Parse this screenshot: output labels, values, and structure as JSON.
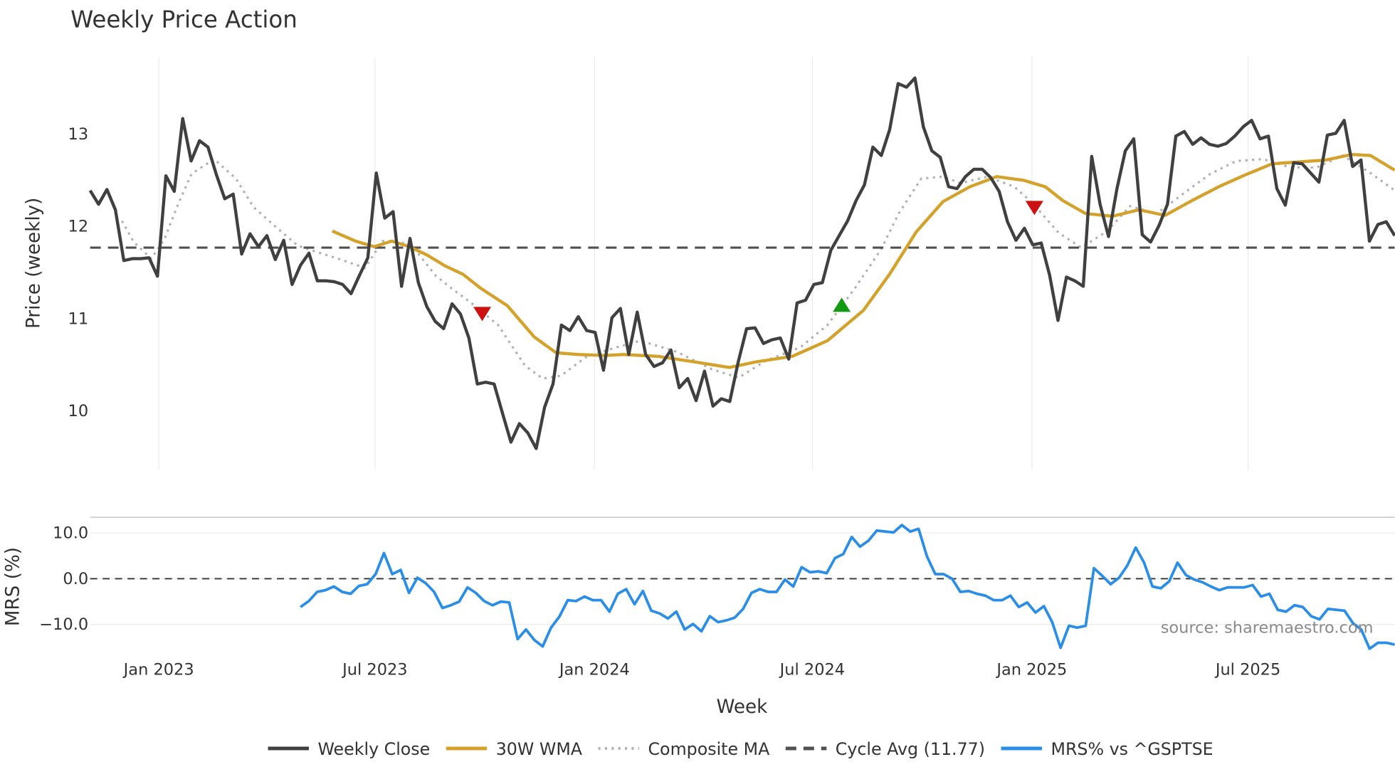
{
  "chart_data": [
    {
      "type": "line",
      "title": "Weekly Price Action",
      "xlabel": "Week",
      "ylabel": "Price (weekly)",
      "x_unit": "weeks since first plotted week (early Nov 2022)",
      "xlim": [
        0,
        155.7
      ],
      "ylim": [
        9.4,
        13.85
      ],
      "grid": true,
      "x_ticks": [
        {
          "label": "Jan 2023",
          "week": 8.2
        },
        {
          "label": "Jul 2023",
          "week": 34.0
        },
        {
          "label": "Jan 2024",
          "week": 60.2
        },
        {
          "label": "Jul 2024",
          "week": 86.2
        },
        {
          "label": "Jan 2025",
          "week": 112.4
        },
        {
          "label": "Jul 2025",
          "week": 138.2
        }
      ],
      "y_ticks": [
        10,
        11,
        12,
        13
      ],
      "series": [
        {
          "name": "Weekly Close",
          "color": "#404040",
          "style": "solid",
          "start_week": 0,
          "end_week": 155.7,
          "values": [
            12.39,
            12.24,
            12.4,
            12.18,
            11.63,
            11.65,
            11.65,
            11.66,
            11.46,
            12.55,
            12.38,
            13.17,
            12.71,
            12.93,
            12.86,
            12.56,
            12.3,
            12.35,
            11.7,
            11.92,
            11.78,
            11.9,
            11.64,
            11.85,
            11.37,
            11.58,
            11.71,
            11.41,
            11.41,
            11.4,
            11.37,
            11.27,
            11.47,
            11.66,
            12.58,
            12.09,
            12.16,
            11.35,
            11.87,
            11.39,
            11.13,
            10.97,
            10.89,
            11.16,
            11.05,
            10.79,
            10.29,
            10.31,
            10.29,
            9.97,
            9.66,
            9.86,
            9.76,
            9.59,
            10.04,
            10.29,
            10.93,
            10.87,
            11.02,
            10.87,
            10.85,
            10.44,
            11.01,
            11.11,
            10.61,
            11.07,
            10.61,
            10.48,
            10.52,
            10.66,
            10.25,
            10.35,
            10.11,
            10.43,
            10.05,
            10.13,
            10.1,
            10.53,
            10.89,
            10.9,
            10.73,
            10.77,
            10.79,
            10.56,
            11.17,
            11.2,
            11.37,
            11.39,
            11.74,
            11.9,
            12.06,
            12.28,
            12.45,
            12.86,
            12.77,
            13.05,
            13.55,
            13.51,
            13.61,
            13.08,
            12.82,
            12.75,
            12.43,
            12.41,
            12.54,
            12.62,
            12.62,
            12.53,
            12.38,
            12.05,
            11.85,
            11.98,
            11.8,
            11.82,
            11.47,
            10.98,
            11.45,
            11.41,
            11.35,
            12.76,
            12.24,
            11.89,
            12.41,
            12.82,
            12.95,
            11.91,
            11.83,
            12.01,
            12.24,
            12.98,
            13.03,
            12.89,
            12.96,
            12.89,
            12.87,
            12.9,
            12.98,
            13.08,
            13.15,
            12.95,
            12.98,
            12.41,
            12.23,
            12.69,
            12.68,
            12.58,
            12.48,
            12.99,
            13.01,
            13.15,
            12.65,
            12.72,
            11.84,
            12.02,
            12.05,
            11.9
          ]
        },
        {
          "name": "30W WMA",
          "color": "#d4a22b",
          "style": "solid",
          "points": [
            [
              28.9,
              11.95
            ],
            [
              31.7,
              11.84
            ],
            [
              33.9,
              11.78
            ],
            [
              36.0,
              11.84
            ],
            [
              38.1,
              11.78
            ],
            [
              40.2,
              11.69
            ],
            [
              42.4,
              11.57
            ],
            [
              44.5,
              11.48
            ],
            [
              46.6,
              11.33
            ],
            [
              49.8,
              11.14
            ],
            [
              53.0,
              10.8
            ],
            [
              55.6,
              10.63
            ],
            [
              58.3,
              10.61
            ],
            [
              61.4,
              10.6
            ],
            [
              63.6,
              10.61
            ],
            [
              67.8,
              10.59
            ],
            [
              72.1,
              10.53
            ],
            [
              76.3,
              10.47
            ],
            [
              79.5,
              10.53
            ],
            [
              83.8,
              10.59
            ],
            [
              88.0,
              10.76
            ],
            [
              92.3,
              11.09
            ],
            [
              95.4,
              11.48
            ],
            [
              98.6,
              11.94
            ],
            [
              101.8,
              12.27
            ],
            [
              105.0,
              12.43
            ],
            [
              108.2,
              12.54
            ],
            [
              111.4,
              12.5
            ],
            [
              114.0,
              12.43
            ],
            [
              116.1,
              12.28
            ],
            [
              118.8,
              12.14
            ],
            [
              122.0,
              12.11
            ],
            [
              125.2,
              12.18
            ],
            [
              128.3,
              12.12
            ],
            [
              131.5,
              12.28
            ],
            [
              134.7,
              12.43
            ],
            [
              137.9,
              12.56
            ],
            [
              141.1,
              12.68
            ],
            [
              144.3,
              12.7
            ],
            [
              147.5,
              12.72
            ],
            [
              150.6,
              12.78
            ],
            [
              152.8,
              12.77
            ],
            [
              155.7,
              12.61
            ]
          ]
        },
        {
          "name": "Composite MA",
          "color": "#b0b0b0",
          "style": "dotted",
          "points": [
            [
              3.8,
              12.06
            ],
            [
              5.2,
              11.83
            ],
            [
              7.3,
              11.65
            ],
            [
              8.9,
              11.87
            ],
            [
              10.5,
              12.24
            ],
            [
              12.1,
              12.57
            ],
            [
              14.8,
              12.73
            ],
            [
              17.4,
              12.52
            ],
            [
              19.5,
              12.21
            ],
            [
              22.2,
              11.99
            ],
            [
              24.8,
              11.79
            ],
            [
              27.5,
              11.71
            ],
            [
              29.6,
              11.65
            ],
            [
              32.8,
              11.55
            ],
            [
              34.9,
              11.84
            ],
            [
              37.0,
              11.84
            ],
            [
              39.2,
              11.7
            ],
            [
              41.3,
              11.46
            ],
            [
              43.4,
              11.31
            ],
            [
              45.5,
              11.17
            ],
            [
              48.7,
              10.93
            ],
            [
              51.9,
              10.49
            ],
            [
              54.0,
              10.35
            ],
            [
              56.2,
              10.38
            ],
            [
              59.3,
              10.59
            ],
            [
              62.5,
              10.68
            ],
            [
              65.7,
              10.76
            ],
            [
              70.0,
              10.64
            ],
            [
              74.2,
              10.45
            ],
            [
              77.4,
              10.36
            ],
            [
              80.6,
              10.54
            ],
            [
              84.8,
              10.69
            ],
            [
              88.0,
              10.93
            ],
            [
              91.2,
              11.32
            ],
            [
              94.4,
              11.75
            ],
            [
              96.5,
              12.14
            ],
            [
              99.2,
              12.52
            ],
            [
              101.8,
              12.54
            ],
            [
              103.9,
              12.47
            ],
            [
              107.1,
              12.54
            ],
            [
              110.3,
              12.43
            ],
            [
              112.4,
              12.26
            ],
            [
              115.6,
              11.93
            ],
            [
              118.3,
              11.77
            ],
            [
              121.4,
              11.95
            ],
            [
              124.1,
              12.22
            ],
            [
              127.3,
              12.14
            ],
            [
              130.4,
              12.35
            ],
            [
              133.7,
              12.57
            ],
            [
              136.8,
              12.71
            ],
            [
              140.0,
              12.73
            ],
            [
              143.2,
              12.64
            ],
            [
              146.4,
              12.64
            ],
            [
              149.5,
              12.77
            ],
            [
              152.8,
              12.58
            ],
            [
              155.7,
              12.39
            ]
          ]
        },
        {
          "name": "Cycle Avg (11.77)",
          "color": "#505050",
          "style": "dashed",
          "value": 11.77
        }
      ],
      "markers": [
        {
          "type": "sell",
          "shape": "triangle-down",
          "color": "#cc1111",
          "week": 46.8,
          "value": 11.05
        },
        {
          "type": "buy",
          "shape": "triangle-up",
          "color": "#119911",
          "week": 89.7,
          "value": 11.15
        },
        {
          "type": "sell",
          "shape": "triangle-down",
          "color": "#cc1111",
          "week": 112.7,
          "value": 12.2
        }
      ]
    },
    {
      "type": "line",
      "ylabel": "MRS (%)",
      "ylim": [
        -16.5,
        13
      ],
      "y_ticks": [
        {
          "value": 10,
          "label": "10.0"
        },
        {
          "value": 0,
          "label": "0.0"
        },
        {
          "value": -10,
          "label": "−10.0"
        }
      ],
      "zero_line": 0,
      "series": [
        {
          "name": "MRS% vs ^GSPTSE",
          "color": "#2a8de6",
          "style": "solid",
          "start_week": 25.1,
          "end_week": 155.7,
          "values": [
            -6.2,
            -4.9,
            -2.9,
            -2.5,
            -1.7,
            -2.9,
            -3.3,
            -1.6,
            -1.2,
            1.0,
            5.6,
            1.0,
            1.9,
            -3.1,
            0.2,
            -1.0,
            -2.9,
            -6.4,
            -5.8,
            -5.0,
            -1.9,
            -3.1,
            -4.9,
            -5.8,
            -5.0,
            -5.2,
            -13.2,
            -11.1,
            -13.4,
            -14.8,
            -10.7,
            -8.3,
            -4.7,
            -4.9,
            -3.9,
            -4.7,
            -4.7,
            -7.2,
            -3.3,
            -2.3,
            -5.6,
            -2.7,
            -7.0,
            -7.6,
            -8.7,
            -7.2,
            -11.1,
            -9.9,
            -11.5,
            -8.2,
            -9.5,
            -9.1,
            -8.5,
            -6.6,
            -3.1,
            -2.3,
            -2.9,
            -2.9,
            -0.2,
            -1.7,
            2.5,
            1.4,
            1.6,
            1.2,
            4.5,
            5.4,
            9.1,
            7.0,
            8.3,
            10.5,
            10.3,
            10.1,
            11.7,
            10.3,
            10.9,
            4.9,
            1.0,
            1.0,
            0.0,
            -2.9,
            -2.7,
            -3.3,
            -3.7,
            -4.7,
            -4.7,
            -3.7,
            -6.2,
            -5.2,
            -7.4,
            -6.0,
            -9.5,
            -15.1,
            -10.3,
            -10.7,
            -10.3,
            2.3,
            0.6,
            -1.2,
            0.2,
            2.9,
            6.8,
            3.5,
            -1.7,
            -2.1,
            -0.6,
            3.5,
            0.8,
            -0.2,
            -0.8,
            -1.7,
            -2.5,
            -1.9,
            -1.9,
            -1.9,
            -1.4,
            -3.9,
            -3.3,
            -6.8,
            -7.2,
            -5.8,
            -6.2,
            -8.2,
            -8.9,
            -6.6,
            -6.8,
            -7.0,
            -9.7,
            -11.1,
            -15.3,
            -14.0,
            -14.0,
            -14.4
          ]
        }
      ]
    }
  ],
  "legend": [
    {
      "label": "Weekly Close",
      "color": "#404040",
      "style": "solid"
    },
    {
      "label": "30W WMA",
      "color": "#d4a22b",
      "style": "solid"
    },
    {
      "label": "Composite MA",
      "color": "#b0b0b0",
      "style": "dotted"
    },
    {
      "label": "Cycle Avg (11.77)",
      "color": "#505050",
      "style": "dashed"
    },
    {
      "label": "MRS% vs ^GSPTSE",
      "color": "#2a8de6",
      "style": "solid"
    }
  ],
  "legend_position": "bottom-center",
  "source": "source: sharemaestro.com"
}
